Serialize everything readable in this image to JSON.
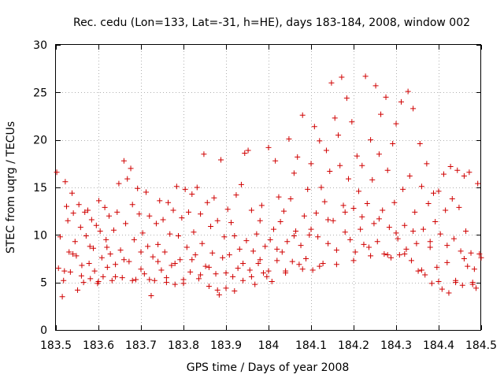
{
  "chart_data": {
    "type": "scatter",
    "title": "Rec. cedu (Lon=133, Lat=-31, h=HE), days 183-184, 2008, window 002",
    "xlabel": "GPS time / Days of year 2008",
    "ylabel": "STEC from uqrg / TECUs",
    "xlim": [
      183.5,
      184.5
    ],
    "ylim": [
      0,
      30
    ],
    "xticks": [
      183.5,
      183.6,
      183.7,
      183.8,
      183.9,
      184.0,
      184.1,
      184.2,
      184.3,
      184.4,
      184.5
    ],
    "xtick_labels": [
      "183.5",
      "183.6",
      "183.7",
      "183.8",
      "183.9",
      "184",
      "184.1",
      "184.2",
      "184.3",
      "184.4",
      "184.5"
    ],
    "yticks": [
      0,
      5,
      10,
      15,
      20,
      25,
      30
    ],
    "ytick_labels": [
      "0",
      "5",
      "10",
      "15",
      "20",
      "25",
      "30"
    ],
    "grid": true,
    "marker": "+",
    "color": "#d00000",
    "series": [
      {
        "name": "STEC",
        "points": [
          [
            183.502,
            16.6
          ],
          [
            183.506,
            6.5
          ],
          [
            183.51,
            9.8
          ],
          [
            183.515,
            3.5
          ],
          [
            183.518,
            5.2
          ],
          [
            183.522,
            15.6
          ],
          [
            183.525,
            13.0
          ],
          [
            183.528,
            11.5
          ],
          [
            183.531,
            8.2
          ],
          [
            183.534,
            6.1
          ],
          [
            183.538,
            14.4
          ],
          [
            183.541,
            12.3
          ],
          [
            183.545,
            9.3
          ],
          [
            183.548,
            7.8
          ],
          [
            183.551,
            4.2
          ],
          [
            183.554,
            13.2
          ],
          [
            183.558,
            10.8
          ],
          [
            183.561,
            6.8
          ],
          [
            183.565,
            5.0
          ],
          [
            183.568,
            12.4
          ],
          [
            183.571,
            9.9
          ],
          [
            183.575,
            12.6
          ],
          [
            183.578,
            7.0
          ],
          [
            183.581,
            5.4
          ],
          [
            183.584,
            11.6
          ],
          [
            183.588,
            8.6
          ],
          [
            183.591,
            6.2
          ],
          [
            183.595,
            11.0
          ],
          [
            183.598,
            4.9
          ],
          [
            183.601,
            13.6
          ],
          [
            183.604,
            10.4
          ],
          [
            183.608,
            7.6
          ],
          [
            183.611,
            5.6
          ],
          [
            183.615,
            12.9
          ],
          [
            183.618,
            9.5
          ],
          [
            183.621,
            6.6
          ],
          [
            183.625,
            12.0
          ],
          [
            183.628,
            8.0
          ],
          [
            183.632,
            5.2
          ],
          [
            183.636,
            10.5
          ],
          [
            183.64,
            6.9
          ],
          [
            183.644,
            12.4
          ],
          [
            183.648,
            15.4
          ],
          [
            183.652,
            8.4
          ],
          [
            183.656,
            5.5
          ],
          [
            183.66,
            17.8
          ],
          [
            183.664,
            11.2
          ],
          [
            183.668,
            15.9
          ],
          [
            183.672,
            7.2
          ],
          [
            183.676,
            17.0
          ],
          [
            183.68,
            13.2
          ],
          [
            183.684,
            9.5
          ],
          [
            183.688,
            5.3
          ],
          [
            183.692,
            14.9
          ],
          [
            183.696,
            12.2
          ],
          [
            183.7,
            6.4
          ],
          [
            183.704,
            10.2
          ],
          [
            183.708,
            5.9
          ],
          [
            183.712,
            14.5
          ],
          [
            183.716,
            8.8
          ],
          [
            183.72,
            12.0
          ],
          [
            183.724,
            3.6
          ],
          [
            183.728,
            7.7
          ],
          [
            183.732,
            5.2
          ],
          [
            183.736,
            11.2
          ],
          [
            183.74,
            9.0
          ],
          [
            183.744,
            13.6
          ],
          [
            183.748,
            6.3
          ],
          [
            183.752,
            11.6
          ],
          [
            183.756,
            8.2
          ],
          [
            183.76,
            5.5
          ],
          [
            183.764,
            13.4
          ],
          [
            183.768,
            10.1
          ],
          [
            183.772,
            6.8
          ],
          [
            183.776,
            12.6
          ],
          [
            183.78,
            4.8
          ],
          [
            183.784,
            15.1
          ],
          [
            183.788,
            9.9
          ],
          [
            183.792,
            7.4
          ],
          [
            183.796,
            11.8
          ],
          [
            183.8,
            5.3
          ],
          [
            183.804,
            14.8
          ],
          [
            183.808,
            8.7
          ],
          [
            183.812,
            12.4
          ],
          [
            183.816,
            6.1
          ],
          [
            183.82,
            14.3
          ],
          [
            183.824,
            10.3
          ],
          [
            183.828,
            7.9
          ],
          [
            183.832,
            15.0
          ],
          [
            183.836,
            5.4
          ],
          [
            183.84,
            12.2
          ],
          [
            183.844,
            9.1
          ],
          [
            183.848,
            18.5
          ],
          [
            183.852,
            6.7
          ],
          [
            183.856,
            13.4
          ],
          [
            183.86,
            4.6
          ],
          [
            183.864,
            10.9
          ],
          [
            183.868,
            8.1
          ],
          [
            183.872,
            13.9
          ],
          [
            183.876,
            5.9
          ],
          [
            183.88,
            11.5
          ],
          [
            183.884,
            3.7
          ],
          [
            183.888,
            17.9
          ],
          [
            183.892,
            7.6
          ],
          [
            183.896,
            9.8
          ],
          [
            183.9,
            4.4
          ],
          [
            183.904,
            12.7
          ],
          [
            183.908,
            7.9
          ],
          [
            183.912,
            11.3
          ],
          [
            183.916,
            5.6
          ],
          [
            183.92,
            9.9
          ],
          [
            183.924,
            14.2
          ],
          [
            183.928,
            6.5
          ],
          [
            183.932,
            8.5
          ],
          [
            183.936,
            15.3
          ],
          [
            183.94,
            5.2
          ],
          [
            183.944,
            18.6
          ],
          [
            183.948,
            9.4
          ],
          [
            183.952,
            18.9
          ],
          [
            183.956,
            6.3
          ],
          [
            183.96,
            12.6
          ],
          [
            183.964,
            8.3
          ],
          [
            183.968,
            4.8
          ],
          [
            183.972,
            10.1
          ],
          [
            183.976,
            7.0
          ],
          [
            183.98,
            11.5
          ],
          [
            183.984,
            13.1
          ],
          [
            183.988,
            6.0
          ],
          [
            183.992,
            8.8
          ],
          [
            183.996,
            5.6
          ],
          [
            184.0,
            19.2
          ],
          [
            184.004,
            9.5
          ],
          [
            184.008,
            5.1
          ],
          [
            184.012,
            10.6
          ],
          [
            184.016,
            17.8
          ],
          [
            184.02,
            7.3
          ],
          [
            184.024,
            14.0
          ],
          [
            184.028,
            11.4
          ],
          [
            184.032,
            8.2
          ],
          [
            184.036,
            12.5
          ],
          [
            184.04,
            6.0
          ],
          [
            184.044,
            9.3
          ],
          [
            184.048,
            20.1
          ],
          [
            184.052,
            13.8
          ],
          [
            184.056,
            7.2
          ],
          [
            184.06,
            16.5
          ],
          [
            184.064,
            10.4
          ],
          [
            184.068,
            18.2
          ],
          [
            184.072,
            6.9
          ],
          [
            184.076,
            8.9
          ],
          [
            184.08,
            22.6
          ],
          [
            184.084,
            12.0
          ],
          [
            184.088,
            7.5
          ],
          [
            184.092,
            14.8
          ],
          [
            184.096,
            10.0
          ],
          [
            184.1,
            17.5
          ],
          [
            184.104,
            6.3
          ],
          [
            184.108,
            21.4
          ],
          [
            184.112,
            12.3
          ],
          [
            184.116,
            9.8
          ],
          [
            184.12,
            19.9
          ],
          [
            184.124,
            15.0
          ],
          [
            184.128,
            7.0
          ],
          [
            184.132,
            13.5
          ],
          [
            184.136,
            18.9
          ],
          [
            184.14,
            9.1
          ],
          [
            184.144,
            16.7
          ],
          [
            184.148,
            26.0
          ],
          [
            184.152,
            11.5
          ],
          [
            184.156,
            22.3
          ],
          [
            184.16,
            8.4
          ],
          [
            184.164,
            20.5
          ],
          [
            184.168,
            17.3
          ],
          [
            184.172,
            26.6
          ],
          [
            184.176,
            13.1
          ],
          [
            184.18,
            10.3
          ],
          [
            184.184,
            24.4
          ],
          [
            184.188,
            15.9
          ],
          [
            184.192,
            9.5
          ],
          [
            184.196,
            21.9
          ],
          [
            184.2,
            12.8
          ],
          [
            184.204,
            8.2
          ],
          [
            184.208,
            18.3
          ],
          [
            184.212,
            14.6
          ],
          [
            184.216,
            10.6
          ],
          [
            184.22,
            17.3
          ],
          [
            184.224,
            9.0
          ],
          [
            184.228,
            26.7
          ],
          [
            184.232,
            13.3
          ],
          [
            184.236,
            8.7
          ],
          [
            184.24,
            20.0
          ],
          [
            184.244,
            15.8
          ],
          [
            184.248,
            11.2
          ],
          [
            184.252,
            25.7
          ],
          [
            184.256,
            9.3
          ],
          [
            184.26,
            18.5
          ],
          [
            184.264,
            22.7
          ],
          [
            184.268,
            12.6
          ],
          [
            184.272,
            8.0
          ],
          [
            184.276,
            24.5
          ],
          [
            184.28,
            16.8
          ],
          [
            184.284,
            10.8
          ],
          [
            184.288,
            7.6
          ],
          [
            184.292,
            19.6
          ],
          [
            184.296,
            13.4
          ],
          [
            184.3,
            21.7
          ],
          [
            184.304,
            9.6
          ],
          [
            184.308,
            7.9
          ],
          [
            184.312,
            24.0
          ],
          [
            184.316,
            14.8
          ],
          [
            184.32,
            11.0
          ],
          [
            184.324,
            8.5
          ],
          [
            184.328,
            25.1
          ],
          [
            184.332,
            16.2
          ],
          [
            184.336,
            7.3
          ],
          [
            184.34,
            23.3
          ],
          [
            184.344,
            12.4
          ],
          [
            184.348,
            9.1
          ],
          [
            184.352,
            6.2
          ],
          [
            184.356,
            19.6
          ],
          [
            184.36,
            15.1
          ],
          [
            184.364,
            10.6
          ],
          [
            184.368,
            5.8
          ],
          [
            184.372,
            17.5
          ],
          [
            184.376,
            13.3
          ],
          [
            184.38,
            8.7
          ],
          [
            184.384,
            4.9
          ],
          [
            184.388,
            14.4
          ],
          [
            184.392,
            11.4
          ],
          [
            184.396,
            6.6
          ],
          [
            184.4,
            14.6
          ],
          [
            184.404,
            10.1
          ],
          [
            184.408,
            4.3
          ],
          [
            184.412,
            16.4
          ],
          [
            184.416,
            12.6
          ],
          [
            184.42,
            7.1
          ],
          [
            184.424,
            3.9
          ],
          [
            184.428,
            17.2
          ],
          [
            184.432,
            13.8
          ],
          [
            184.436,
            9.6
          ],
          [
            184.44,
            5.2
          ],
          [
            184.444,
            16.8
          ],
          [
            184.448,
            12.9
          ],
          [
            184.452,
            8.3
          ],
          [
            184.456,
            4.7
          ],
          [
            184.46,
            16.2
          ],
          [
            184.464,
            10.4
          ],
          [
            184.468,
            6.7
          ],
          [
            184.472,
            16.6
          ],
          [
            184.476,
            8.1
          ],
          [
            184.48,
            5.0
          ],
          [
            184.484,
            6.4
          ],
          [
            184.488,
            4.4
          ],
          [
            184.492,
            15.4
          ],
          [
            184.496,
            8.0
          ],
          [
            183.52,
            6.2
          ],
          [
            183.56,
            5.7
          ],
          [
            183.6,
            5.1
          ],
          [
            183.64,
            5.6
          ],
          [
            183.68,
            5.2
          ],
          [
            183.72,
            5.3
          ],
          [
            183.76,
            5.0
          ],
          [
            183.8,
            4.9
          ],
          [
            183.84,
            5.8
          ],
          [
            183.88,
            4.2
          ],
          [
            183.92,
            4.1
          ],
          [
            183.96,
            5.6
          ],
          [
            184.0,
            6.2
          ],
          [
            184.04,
            6.2
          ],
          [
            184.08,
            6.4
          ],
          [
            184.12,
            6.7
          ],
          [
            184.16,
            6.9
          ],
          [
            184.2,
            7.3
          ],
          [
            184.24,
            7.8
          ],
          [
            184.28,
            7.9
          ],
          [
            184.32,
            8.0
          ],
          [
            184.36,
            6.3
          ],
          [
            184.4,
            5.1
          ],
          [
            184.44,
            5.0
          ],
          [
            184.48,
            4.8
          ],
          [
            183.54,
            8.0
          ],
          [
            183.58,
            8.8
          ],
          [
            183.62,
            8.7
          ],
          [
            183.66,
            7.4
          ],
          [
            183.7,
            8.2
          ],
          [
            183.74,
            7.2
          ],
          [
            183.78,
            7.0
          ],
          [
            183.82,
            7.4
          ],
          [
            183.86,
            6.6
          ],
          [
            183.9,
            6.0
          ],
          [
            183.94,
            7.0
          ],
          [
            183.98,
            7.4
          ],
          [
            184.02,
            8.5
          ],
          [
            184.06,
            9.9
          ],
          [
            184.1,
            10.6
          ],
          [
            184.14,
            11.6
          ],
          [
            184.18,
            12.4
          ],
          [
            184.22,
            11.9
          ],
          [
            184.26,
            11.7
          ],
          [
            184.3,
            10.2
          ],
          [
            184.34,
            10.4
          ],
          [
            184.38,
            9.3
          ],
          [
            184.42,
            8.9
          ],
          [
            184.46,
            7.5
          ],
          [
            184.5,
            7.6
          ]
        ]
      }
    ]
  }
}
